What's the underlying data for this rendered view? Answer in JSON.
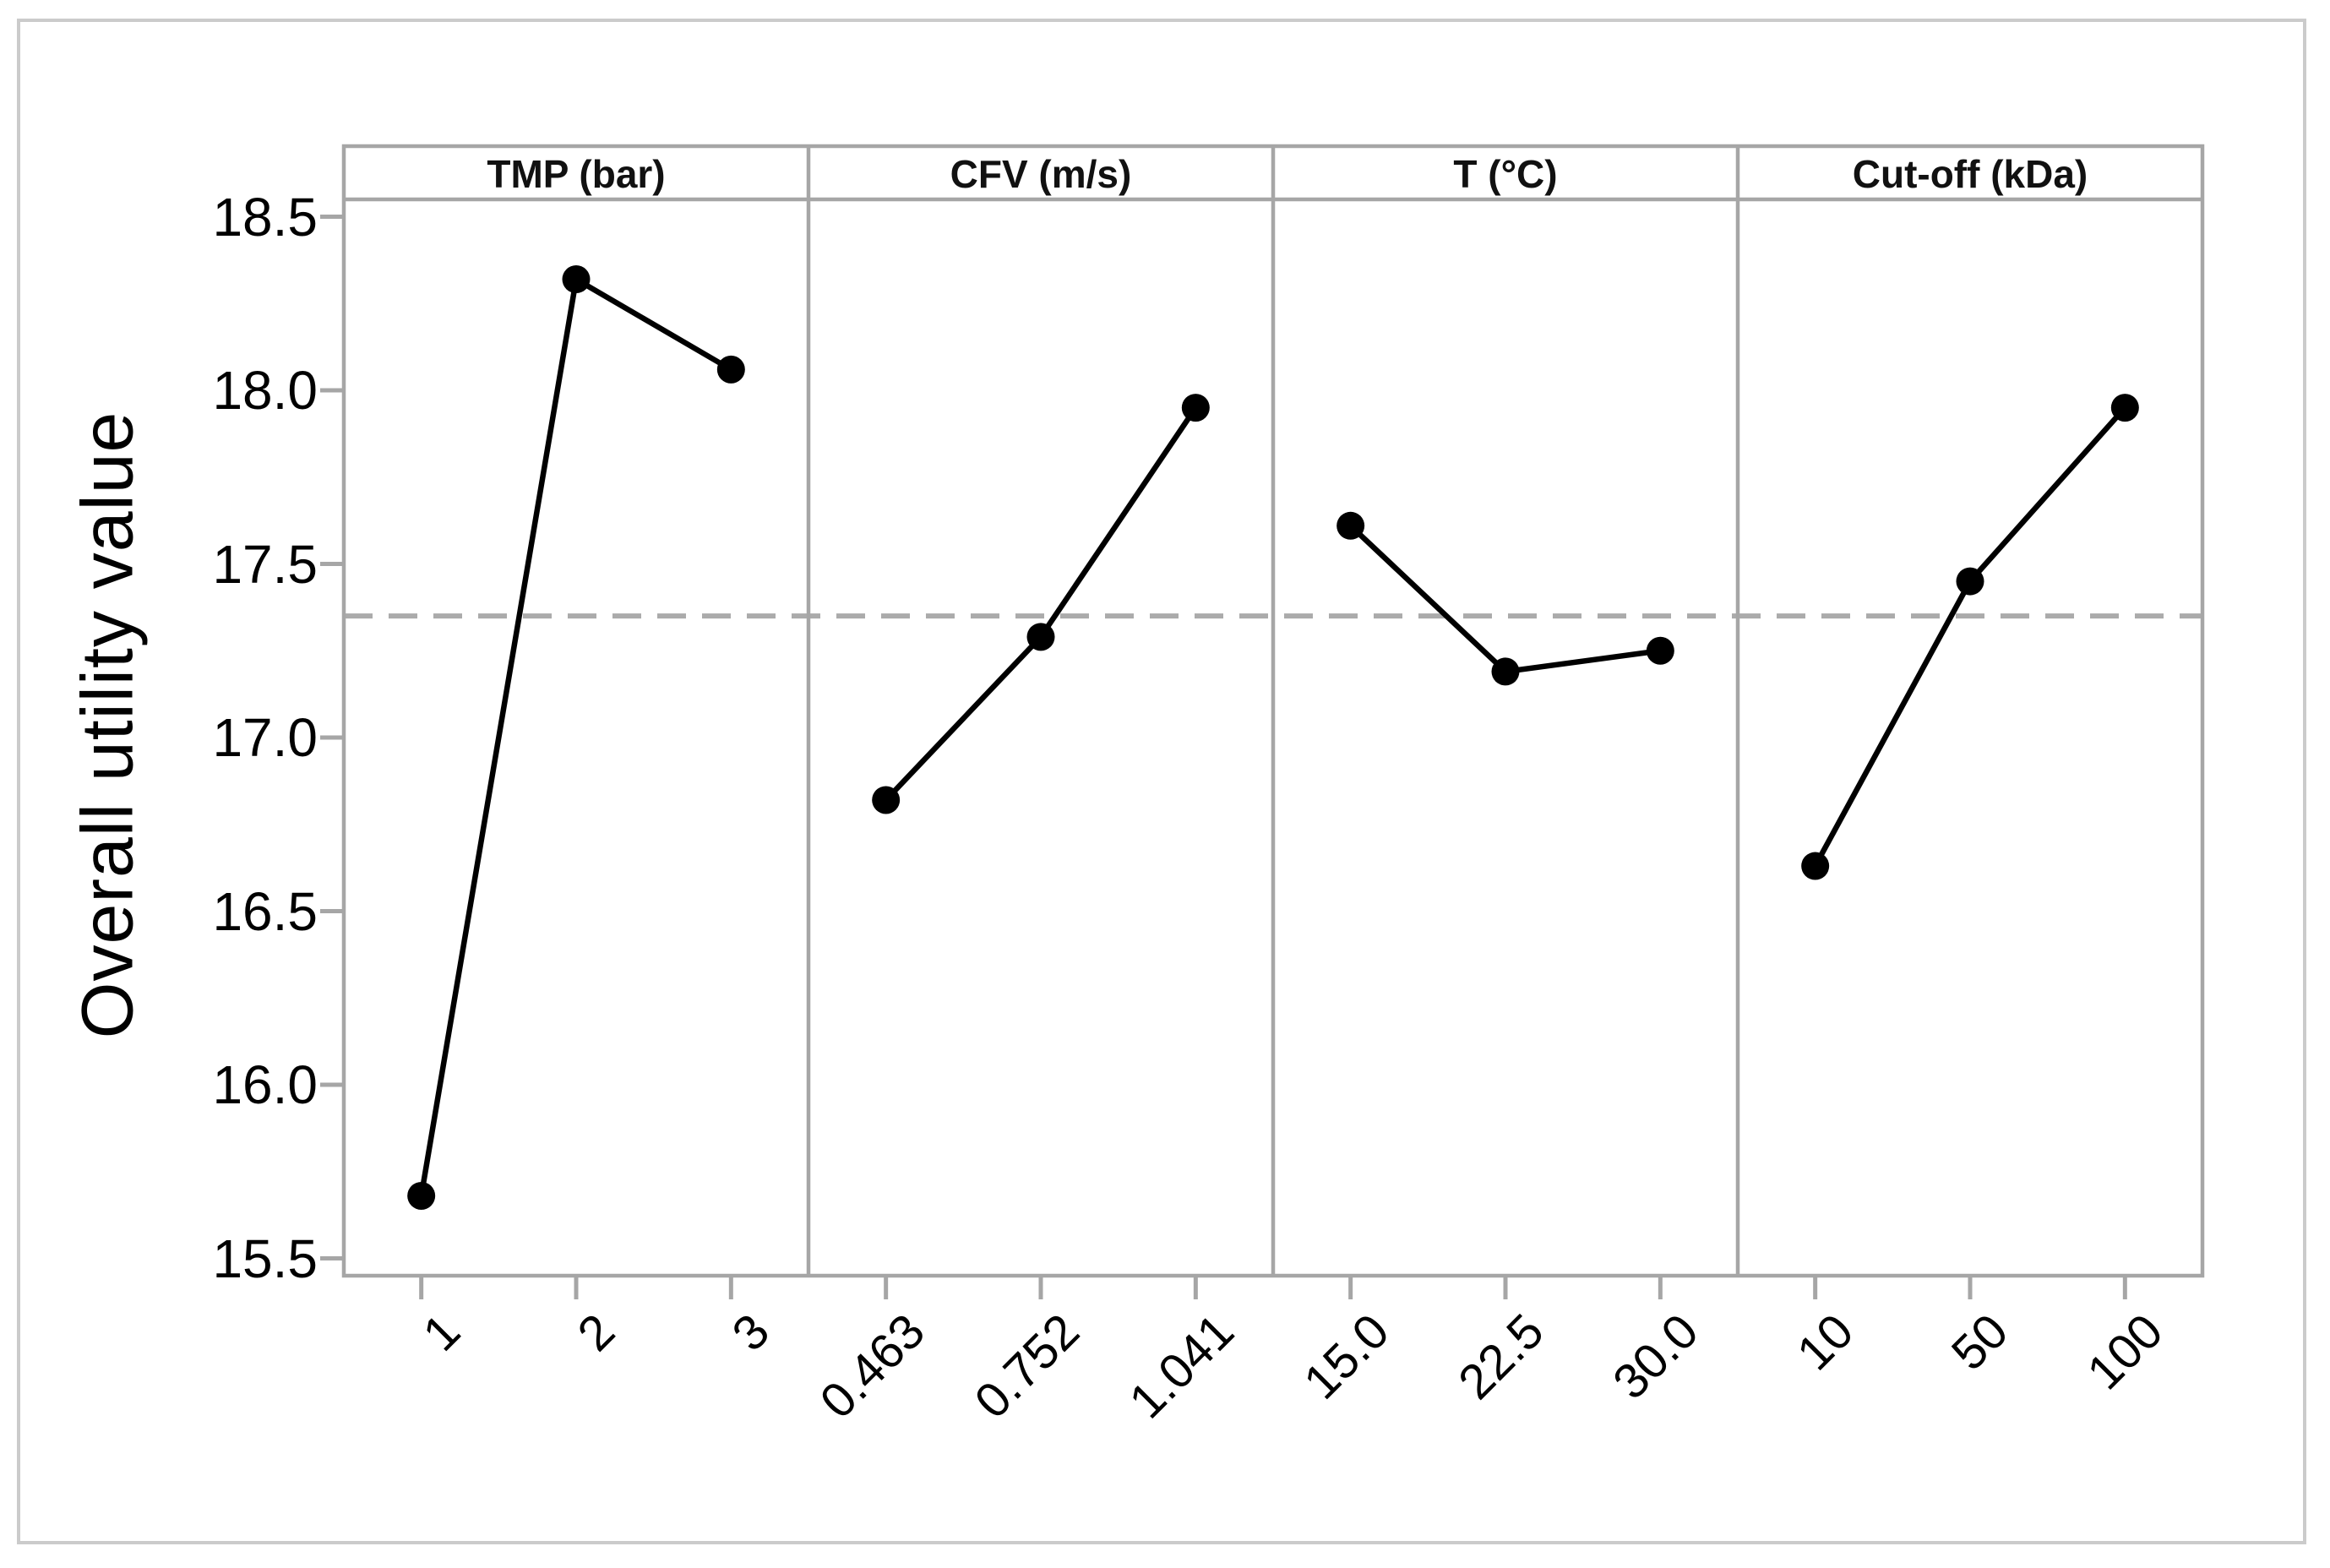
{
  "figure": {
    "description": "Main effects plot of overall utility value versus four process factors",
    "background": "#ffffff",
    "border_color": "#cbcbcb"
  },
  "chart_data": {
    "type": "line",
    "subtype": "main-effects-panel-plot",
    "title": "",
    "xlabel": "",
    "ylabel": "Overall utility value",
    "ylim": [
      15.45,
      18.55
    ],
    "yticks": [
      18.5,
      18.0,
      17.5,
      17.0,
      16.5,
      16.0,
      15.5
    ],
    "ytick_labels": [
      "18.5",
      "18.0",
      "17.5",
      "17.0",
      "16.5",
      "16.0",
      "15.5"
    ],
    "grid": false,
    "legend": "none",
    "reference_line": 17.35,
    "reference_line_style": "dashed",
    "panels": [
      {
        "label": "TMP (bar)",
        "categories": [
          "1",
          "2",
          "3"
        ],
        "values": [
          15.68,
          18.32,
          18.06
        ]
      },
      {
        "label": "CFV (m/s)",
        "categories": [
          "0.463",
          "0.752",
          "1.041"
        ],
        "values": [
          16.82,
          17.29,
          17.95
        ]
      },
      {
        "label": "T (°C)",
        "categories": [
          "15.0",
          "22.5",
          "30.0"
        ],
        "values": [
          17.61,
          17.19,
          17.25
        ]
      },
      {
        "label": "Cut-off (kDa)",
        "categories": [
          "10",
          "50",
          "100"
        ],
        "values": [
          16.63,
          17.45,
          17.95
        ]
      }
    ],
    "colors": {
      "line": "#000000",
      "marker": "#000000",
      "frame": "#a6a6a6",
      "reference": "#ababab",
      "text": "#000000"
    }
  }
}
